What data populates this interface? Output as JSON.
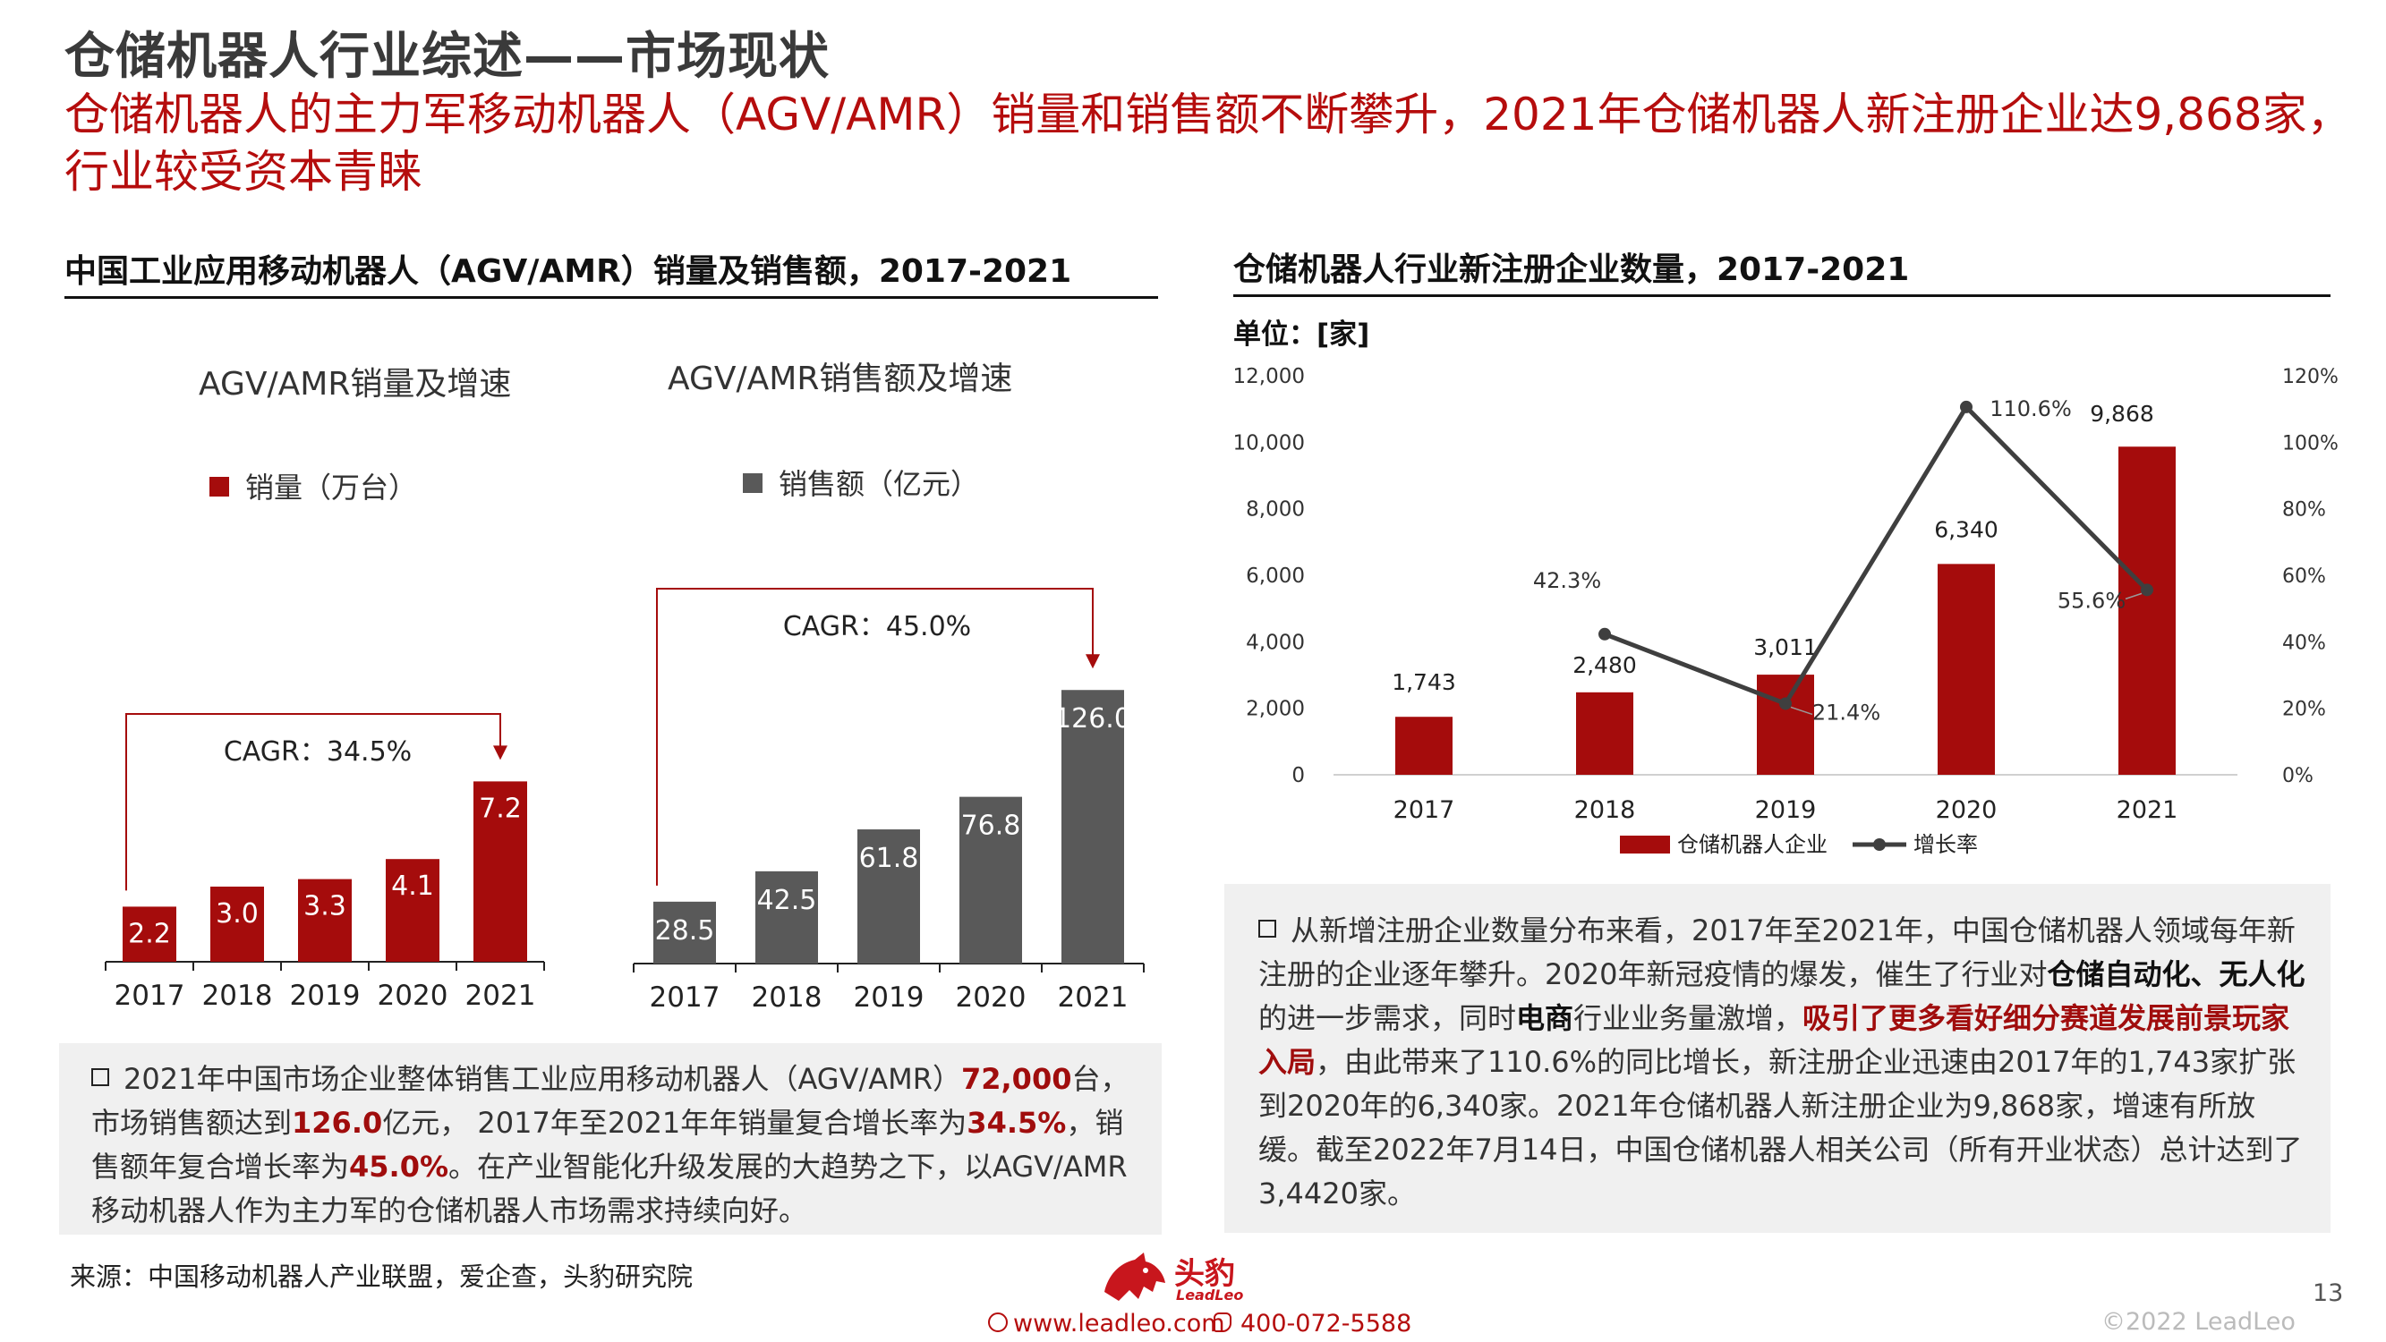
{
  "title": "仓储机器人行业综述——市场现状",
  "subtitle": "仓储机器人的主力军移动机器人（AGV/AMR）销量和销售额不断攀升，2021年仓储机器人新注册企业达9,868家，行业较受资本青睐",
  "left_section": {
    "heading": "中国工业应用移动机器人（AGV/AMR）销量及销售额，2017-2021",
    "chart1_title": "AGV/AMR销量及增速",
    "chart1_legend": "销量（万台）",
    "chart2_title": "AGV/AMR销售额及增速",
    "chart2_legend": "销售额（亿元）",
    "paragraph": [
      {
        "t": "2021年中国市场企业整体销售工业应用移动机器人（AGV/AMR）"
      },
      {
        "t": "72,000",
        "s": "hl"
      },
      {
        "t": "台，市场销售额达到"
      },
      {
        "t": "126.0",
        "s": "hl"
      },
      {
        "t": "亿元， 2017年至2021年年销量复合增长率为"
      },
      {
        "t": "34.5%",
        "s": "hl"
      },
      {
        "t": "，销售额年复合增长率为"
      },
      {
        "t": "45.0%",
        "s": "hl"
      },
      {
        "t": "。在产业智能化升级发展的大趋势之下，以AGV/AMR移动机器人作为主力军的仓储机器人市场需求持续向好。"
      }
    ]
  },
  "right_section": {
    "heading": "仓储机器人行业新注册企业数量，2017-2021",
    "unit": "单位：[家]",
    "paragraph": [
      {
        "t": "从新增注册企业数量分布来看，2017年至2021年，中国仓储机器人领域每年新注册的企业逐年攀升。2020年新冠疫情的爆发，催生了行业对"
      },
      {
        "t": "仓储自动化、无人化",
        "s": "bold"
      },
      {
        "t": "的进一步需求，同时"
      },
      {
        "t": "电商",
        "s": "bold"
      },
      {
        "t": "行业业务量激增，"
      },
      {
        "t": "吸引了更多看好细分赛道发展前景玩家入局",
        "s": "hl"
      },
      {
        "t": "，由此带来了110.6%的同比增长，新注册企业迅速由2017年的1,743家扩张到2020年的6,340家。2021年仓储机器人新注册企业为9,868家，增速有所放缓。截至2022年7月14日，中国仓储机器人相关公司（所有开业状态）总计达到了3,4420家。"
      }
    ]
  },
  "chart_data": [
    {
      "type": "bar",
      "title": "AGV/AMR销量及增速",
      "categories": [
        "2017",
        "2018",
        "2019",
        "2020",
        "2021"
      ],
      "series": [
        {
          "name": "销量（万台）",
          "values": [
            2.2,
            3.0,
            3.3,
            4.1,
            7.2
          ]
        }
      ],
      "data_labels": [
        "2.2",
        "3.0",
        "3.3",
        "4.1",
        "7.2"
      ],
      "annotation": "CAGR：34.5%",
      "color": "#a50c0c",
      "ylim": [
        0,
        10
      ]
    },
    {
      "type": "bar",
      "title": "AGV/AMR销售额及增速",
      "categories": [
        "2017",
        "2018",
        "2019",
        "2020",
        "2021"
      ],
      "series": [
        {
          "name": "销售额（亿元）",
          "values": [
            28.5,
            42.5,
            61.8,
            76.8,
            126.0
          ]
        }
      ],
      "data_labels": [
        "28.5",
        "42.5",
        "61.8",
        "76.8",
        "126.0"
      ],
      "annotation": "CAGR：45.0%",
      "color": "#595959",
      "ylim": [
        0,
        150
      ]
    },
    {
      "type": "bar+line",
      "title": "仓储机器人行业新注册企业数量，2017-2021",
      "categories": [
        "2017",
        "2018",
        "2019",
        "2020",
        "2021"
      ],
      "series": [
        {
          "name": "仓储机器人企业",
          "type": "bar",
          "axis": "left",
          "values": [
            1743,
            2480,
            3011,
            6340,
            9868
          ],
          "labels": [
            "1,743",
            "2,480",
            "3,011",
            "6,340",
            "9,868"
          ]
        },
        {
          "name": "增长率",
          "type": "line",
          "axis": "right",
          "values": [
            null,
            42.3,
            21.4,
            110.6,
            55.6
          ],
          "labels": [
            "",
            "42.3%",
            "21.4%",
            "110.6%",
            "55.6%"
          ]
        }
      ],
      "left_axis": {
        "ylim": [
          0,
          12000
        ],
        "ticks": [
          "0",
          "2,000",
          "4,000",
          "6,000",
          "8,000",
          "10,000",
          "12,000"
        ]
      },
      "right_axis": {
        "ylim": [
          0,
          120
        ],
        "ticks": [
          "0%",
          "20%",
          "40%",
          "60%",
          "80%",
          "100%",
          "120%"
        ]
      },
      "bar_color": "#a50c0c",
      "line_color": "#3f3f3f",
      "legend_position": "bottom"
    }
  ],
  "footer": {
    "source": "来源：中国移动机器人产业联盟，爱企查，头豹研究院",
    "logo_cn": "头豹",
    "logo_en": "LeadLeo",
    "website": "www.leadleo.com",
    "phone": "400-072-5588",
    "copyright": "©2022 LeadLeo",
    "page": "13"
  },
  "icons": {
    "logo": "leopard-logo-icon",
    "web": "globe-icon",
    "phone": "phone-icon",
    "bullet": "checkbox-bullet-icon"
  }
}
